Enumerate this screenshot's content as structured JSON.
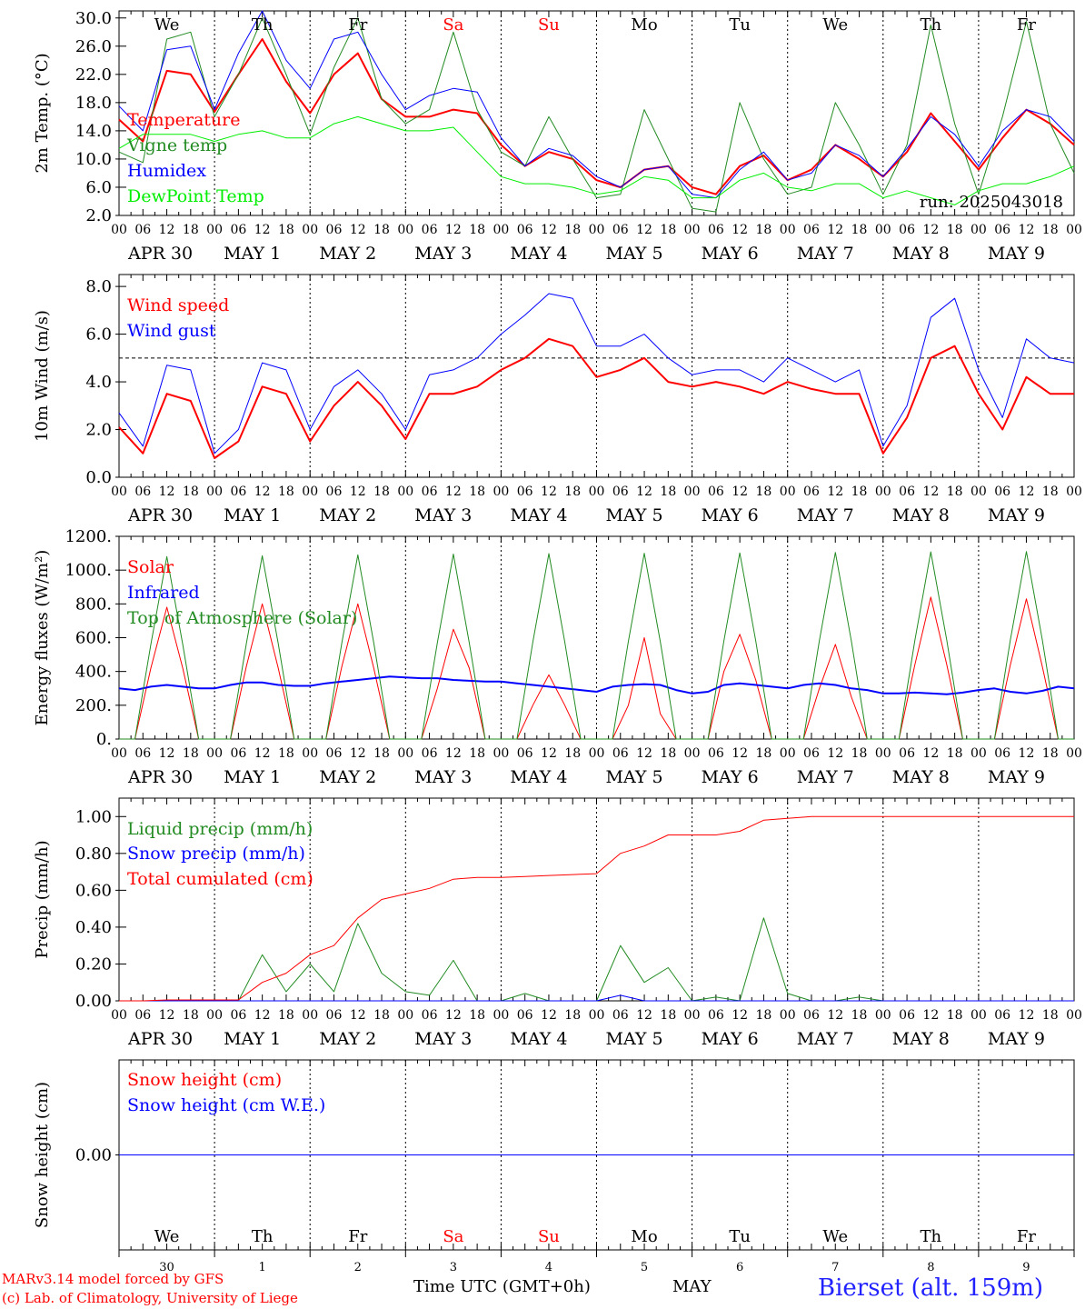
{
  "days": [
    "We",
    "Th",
    "Fr",
    "Sa",
    "Su",
    "Mo",
    "Tu",
    "We",
    "Th",
    "Fr"
  ],
  "weekend_days": [
    "Sa",
    "Su"
  ],
  "day_label_colors": {
    "weekday": "#000000",
    "weekend": "#ff0000"
  },
  "date_labels": [
    "APR 30",
    "MAY  1",
    "MAY  2",
    "MAY  3",
    "MAY  4",
    "MAY  5",
    "MAY  6",
    "MAY  7",
    "MAY  8",
    "MAY  9"
  ],
  "hour_ticks": [
    "00",
    "06",
    "12",
    "18"
  ],
  "final_hour_tick": "00",
  "bottom_day_numbers": [
    "30",
    "1",
    "2",
    "3",
    "4",
    "5",
    "6",
    "7",
    "8",
    "9"
  ],
  "footer": {
    "credit_line1": "MARv3.14 model forced by GFS",
    "credit_line2": "(c) Lab. of Climatology, University of Liege",
    "xaxis_title": "Time UTC (GMT+0h)",
    "month_label": "MAY",
    "station": "Bierset (alt. 159m)"
  },
  "chart_data": [
    {
      "type": "line",
      "ylabel": "2m Temp. (°C)",
      "ylim": [
        2,
        31
      ],
      "yticks": [
        "2.0",
        "6.0",
        "10.0",
        "14.0",
        "18.0",
        "22.0",
        "26.0",
        "30.0"
      ],
      "ytick_values": [
        2,
        6,
        10,
        14,
        18,
        22,
        26,
        30
      ],
      "run_label": "run: 2025043018",
      "x_hours": [
        0,
        6,
        12,
        18,
        24,
        30,
        36,
        42,
        48,
        54,
        60,
        66,
        72,
        78,
        84,
        90,
        96,
        102,
        108,
        114,
        120,
        126,
        132,
        138,
        144,
        150,
        156,
        162,
        168,
        174,
        180,
        186,
        192,
        198,
        204,
        210,
        216,
        222,
        228,
        234,
        240
      ],
      "series": [
        {
          "name": "Temperature",
          "color": "#ff0000",
          "width": 2,
          "values": [
            15.6,
            12.5,
            22.5,
            22.0,
            16.7,
            22.0,
            27.0,
            21.0,
            16.5,
            22.0,
            25.0,
            18.5,
            16.0,
            16.0,
            17.0,
            16.5,
            12.0,
            9.0,
            11.0,
            10.0,
            7.0,
            6.0,
            8.5,
            9.0,
            6.0,
            5.0,
            9.0,
            10.5,
            7.0,
            8.5,
            12.0,
            10.0,
            7.5,
            11.0,
            16.5,
            12.5,
            8.5,
            13.0,
            17.0,
            15.0,
            12.0
          ]
        },
        {
          "name": "Vigne temp",
          "color": "#228b22",
          "width": 1,
          "values": [
            11.0,
            9.5,
            27.0,
            28.0,
            16.0,
            22.0,
            30.0,
            22.0,
            13.5,
            23.0,
            30.0,
            18.5,
            15.0,
            17.0,
            28.0,
            17.0,
            11.0,
            9.0,
            16.0,
            10.0,
            4.5,
            5.0,
            17.0,
            10.0,
            3.0,
            2.5,
            18.0,
            10.0,
            5.0,
            6.0,
            18.0,
            12.0,
            5.0,
            12.0,
            29.0,
            15.0,
            5.0,
            16.0,
            29.5,
            15.0,
            8.0
          ]
        },
        {
          "name": "Humidex",
          "color": "#0000ff",
          "width": 1,
          "values": [
            17.5,
            14.0,
            25.5,
            26.0,
            17.0,
            25.0,
            31.0,
            24.0,
            20.0,
            27.0,
            28.0,
            22.0,
            17.0,
            19.0,
            20.0,
            19.5,
            13.0,
            9.0,
            11.5,
            10.5,
            7.5,
            6.0,
            8.5,
            9.0,
            5.0,
            4.5,
            8.5,
            11.0,
            7.0,
            8.0,
            12.0,
            10.5,
            7.5,
            11.5,
            16.0,
            13.5,
            9.0,
            14.0,
            17.0,
            16.0,
            12.5
          ]
        },
        {
          "name": "DewPoint Temp",
          "color": "#00ee00",
          "width": 1,
          "values": [
            11.5,
            13.5,
            13.5,
            13.5,
            12.5,
            13.5,
            14.0,
            13.0,
            13.0,
            15.0,
            16.0,
            15.0,
            14.0,
            14.0,
            14.5,
            11.0,
            7.5,
            6.5,
            6.5,
            6.0,
            5.0,
            5.5,
            7.5,
            7.0,
            4.5,
            4.5,
            7.0,
            8.0,
            6.0,
            5.5,
            6.5,
            6.5,
            4.5,
            5.5,
            4.5,
            3.5,
            5.5,
            6.5,
            6.5,
            7.5,
            9.0
          ]
        }
      ]
    },
    {
      "type": "line",
      "ylabel": "10m Wind (m/s)",
      "ylim": [
        0,
        8.5
      ],
      "yticks": [
        "0.0",
        "2.0",
        "4.0",
        "6.0",
        "8.0"
      ],
      "ytick_values": [
        0,
        2,
        4,
        6,
        8
      ],
      "reference_line": 5,
      "x_hours": [
        0,
        6,
        12,
        18,
        24,
        30,
        36,
        42,
        48,
        54,
        60,
        66,
        72,
        78,
        84,
        90,
        96,
        102,
        108,
        114,
        120,
        126,
        132,
        138,
        144,
        150,
        156,
        162,
        168,
        174,
        180,
        186,
        192,
        198,
        204,
        210,
        216,
        222,
        228,
        234,
        240
      ],
      "series": [
        {
          "name": "Wind speed",
          "color": "#ff0000",
          "width": 2,
          "values": [
            2.1,
            1.0,
            3.5,
            3.2,
            0.8,
            1.5,
            3.8,
            3.5,
            1.5,
            3.0,
            4.0,
            3.0,
            1.6,
            3.5,
            3.5,
            3.8,
            4.5,
            5.0,
            5.8,
            5.5,
            4.2,
            4.5,
            5.0,
            4.0,
            3.8,
            4.0,
            3.8,
            3.5,
            4.0,
            3.7,
            3.5,
            3.5,
            1.0,
            2.5,
            5.0,
            5.5,
            3.5,
            2.0,
            4.2,
            3.5,
            3.5
          ]
        },
        {
          "name": "Wind gust",
          "color": "#0000ff",
          "width": 1,
          "values": [
            2.7,
            1.3,
            4.7,
            4.5,
            1.0,
            2.0,
            4.8,
            4.5,
            2.0,
            3.8,
            4.5,
            3.5,
            2.0,
            4.3,
            4.5,
            5.0,
            6.0,
            6.8,
            7.7,
            7.5,
            5.5,
            5.5,
            6.0,
            5.0,
            4.3,
            4.5,
            4.5,
            4.0,
            5.0,
            4.5,
            4.0,
            4.5,
            1.3,
            3.0,
            6.7,
            7.5,
            4.5,
            2.5,
            5.8,
            5.0,
            4.8
          ]
        }
      ]
    },
    {
      "type": "line",
      "ylabel": "Energy fluxes (W/m²)",
      "ylim": [
        0,
        1200
      ],
      "yticks": [
        "0.",
        "200.",
        "400.",
        "600.",
        "800.",
        "1000.",
        "1200."
      ],
      "ytick_values": [
        0,
        200,
        400,
        600,
        800,
        1000,
        1200
      ],
      "x_hours": [
        0,
        4,
        8,
        12,
        16,
        20,
        24,
        28,
        32,
        36,
        40,
        44,
        48,
        52,
        56,
        60,
        64,
        68,
        72,
        76,
        80,
        84,
        88,
        92,
        96,
        100,
        104,
        108,
        112,
        116,
        120,
        124,
        128,
        132,
        136,
        140,
        144,
        148,
        152,
        156,
        160,
        164,
        168,
        172,
        176,
        180,
        184,
        188,
        192,
        196,
        200,
        204,
        208,
        212,
        216,
        220,
        224,
        228,
        232,
        236,
        240
      ],
      "series": [
        {
          "name": "Solar",
          "color": "#ff0000",
          "width": 1,
          "values": [
            0,
            0,
            420,
            780,
            420,
            0,
            0,
            0,
            430,
            800,
            420,
            0,
            0,
            0,
            430,
            800,
            420,
            0,
            0,
            0,
            300,
            650,
            420,
            0,
            0,
            0,
            200,
            380,
            200,
            0,
            0,
            0,
            200,
            600,
            150,
            0,
            0,
            0,
            400,
            620,
            350,
            0,
            0,
            0,
            300,
            560,
            250,
            0,
            0,
            0,
            440,
            840,
            440,
            0,
            0,
            0,
            440,
            830,
            430,
            0,
            0
          ]
        },
        {
          "name": "Infrared",
          "color": "#0000ff",
          "width": 2,
          "values": [
            300,
            290,
            310,
            320,
            310,
            300,
            300,
            320,
            335,
            335,
            320,
            315,
            315,
            330,
            340,
            350,
            360,
            370,
            365,
            360,
            360,
            350,
            345,
            340,
            340,
            330,
            320,
            310,
            300,
            290,
            280,
            310,
            320,
            325,
            320,
            290,
            270,
            280,
            320,
            330,
            320,
            310,
            300,
            320,
            330,
            320,
            300,
            290,
            270,
            270,
            275,
            270,
            265,
            275,
            290,
            300,
            280,
            270,
            285,
            310,
            300
          ]
        },
        {
          "name": "Top of Atmosphere (Solar)",
          "color": "#228b22",
          "width": 1,
          "values": [
            0,
            0,
            560,
            1080,
            560,
            0,
            0,
            0,
            565,
            1085,
            565,
            0,
            0,
            0,
            570,
            1090,
            570,
            0,
            0,
            0,
            570,
            1095,
            570,
            0,
            0,
            0,
            575,
            1098,
            575,
            0,
            0,
            0,
            578,
            1100,
            578,
            0,
            0,
            0,
            580,
            1102,
            580,
            0,
            0,
            0,
            583,
            1105,
            583,
            0,
            0,
            0,
            585,
            1108,
            585,
            0,
            0,
            0,
            588,
            1110,
            588,
            0,
            0
          ]
        }
      ]
    },
    {
      "type": "line",
      "ylabel": "Precip (mm/h)",
      "ylim": [
        0,
        1.1
      ],
      "yticks": [
        "0.00",
        "0.20",
        "0.40",
        "0.60",
        "0.80",
        "1.00"
      ],
      "ytick_values": [
        0,
        0.2,
        0.4,
        0.6,
        0.8,
        1.0
      ],
      "x_hours": [
        0,
        6,
        12,
        18,
        24,
        30,
        36,
        42,
        48,
        54,
        60,
        66,
        72,
        78,
        84,
        90,
        96,
        102,
        108,
        114,
        120,
        126,
        132,
        138,
        144,
        150,
        156,
        162,
        168,
        174,
        180,
        186,
        192,
        198,
        204,
        210,
        216,
        222,
        228,
        234,
        240
      ],
      "series": [
        {
          "name": "Liquid precip (mm/h)",
          "color": "#228b22",
          "width": 1,
          "values": [
            0,
            0,
            0,
            0,
            0,
            0,
            0.25,
            0.05,
            0.2,
            0.05,
            0.42,
            0.15,
            0.05,
            0.03,
            0.22,
            0,
            0,
            0.04,
            0,
            0,
            0,
            0.3,
            0.1,
            0.18,
            0,
            0.02,
            0,
            0.45,
            0.04,
            0,
            0,
            0.02,
            0,
            0,
            0,
            0,
            0,
            0,
            0,
            0,
            0
          ]
        },
        {
          "name": "Snow precip (mm/h)",
          "color": "#0000ff",
          "width": 1,
          "values": [
            0,
            0,
            0,
            0,
            0,
            0,
            0,
            0,
            0,
            0,
            0,
            0,
            0,
            0,
            0,
            0,
            0,
            0,
            0,
            0,
            0,
            0.03,
            0,
            0,
            0,
            0,
            0,
            0,
            0,
            0,
            0,
            0,
            0,
            0,
            0,
            0,
            0,
            0,
            0,
            0,
            0
          ]
        },
        {
          "name": "Total cumulated (cm)",
          "color": "#ff0000",
          "width": 1,
          "values": [
            0,
            0,
            0.005,
            0.005,
            0.005,
            0.005,
            0.1,
            0.15,
            0.25,
            0.3,
            0.45,
            0.55,
            0.58,
            0.61,
            0.66,
            0.67,
            0.67,
            0.675,
            0.68,
            0.685,
            0.69,
            0.8,
            0.84,
            0.9,
            0.9,
            0.9,
            0.92,
            0.98,
            0.99,
            1.0,
            1.0,
            1.0,
            1.0,
            1.0,
            1.0,
            1.0,
            1.0,
            1.0,
            1.0,
            1.0,
            1.0
          ]
        }
      ]
    },
    {
      "type": "line",
      "ylabel": "Snow height (cm)",
      "ylim": [
        -1,
        1
      ],
      "yticks": [
        "0.00"
      ],
      "ytick_values": [
        0
      ],
      "x_hours": [
        0,
        240
      ],
      "series": [
        {
          "name": "Snow height (cm)",
          "color": "#ff0000",
          "width": 1,
          "values": [
            0,
            0
          ]
        },
        {
          "name": "Snow height (cm W.E.)",
          "color": "#0000ff",
          "width": 1,
          "values": [
            0,
            0
          ]
        }
      ]
    }
  ]
}
